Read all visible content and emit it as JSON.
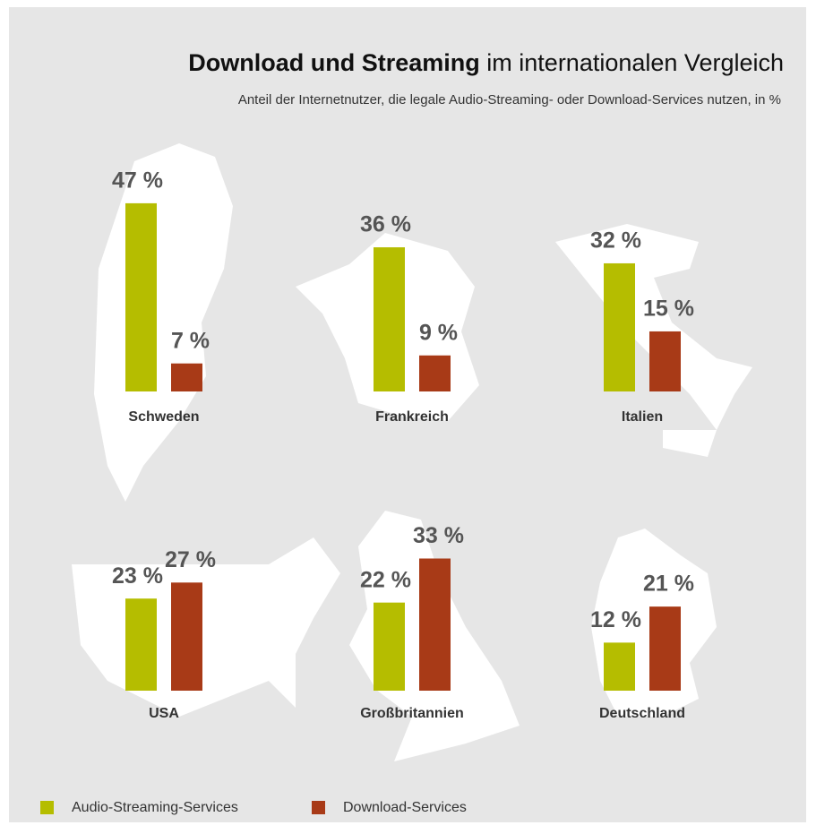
{
  "chart_data": {
    "type": "bar",
    "title": [
      "Download und Streaming",
      "im internationalen Vergleich"
    ],
    "subtitle": "Anteil der Internetnutzer, die legale Audio-Streaming- oder Download-Services nutzen, in %",
    "categories": [
      "Schweden",
      "Frankreich",
      "Italien",
      "USA",
      "Großbritannien",
      "Deutschland"
    ],
    "series": [
      {
        "name": "Audio-Streaming-Services",
        "color": "#b5bd00",
        "values": [
          47,
          36,
          32,
          23,
          22,
          12
        ],
        "value_labels": [
          "47 %",
          "36 %",
          "32 %",
          "23 %",
          "22 %",
          "12 %"
        ]
      },
      {
        "name": "Download-Services",
        "color": "#a83a17",
        "values": [
          7,
          9,
          15,
          27,
          33,
          21
        ],
        "value_labels": [
          "7 %",
          "9 %",
          "15 %",
          "27 %",
          "33 %",
          "21 %"
        ]
      }
    ]
  }
}
